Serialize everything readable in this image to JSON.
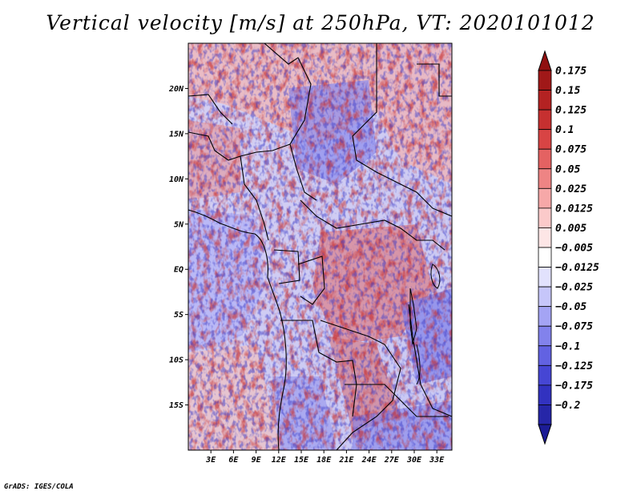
{
  "title": "Vertical velocity [m/s] at 250hPa, VT: 2020101012",
  "credit": "GrADS: IGES/COLA",
  "map": {
    "lon_range": [
      0,
      35
    ],
    "lat_range": [
      -20,
      25
    ],
    "lat_labels": [
      {
        "value": 20,
        "text": "20N"
      },
      {
        "value": 15,
        "text": "15N"
      },
      {
        "value": 10,
        "text": "10N"
      },
      {
        "value": 5,
        "text": "5N"
      },
      {
        "value": 0,
        "text": "EQ"
      },
      {
        "value": -5,
        "text": "5S"
      },
      {
        "value": -10,
        "text": "10S"
      },
      {
        "value": -15,
        "text": "15S"
      }
    ],
    "lon_labels": [
      {
        "value": 3,
        "text": "3E"
      },
      {
        "value": 6,
        "text": "6E"
      },
      {
        "value": 9,
        "text": "9E"
      },
      {
        "value": 12,
        "text": "12E"
      },
      {
        "value": 15,
        "text": "15E"
      },
      {
        "value": 18,
        "text": "18E"
      },
      {
        "value": 21,
        "text": "21E"
      },
      {
        "value": 24,
        "text": "24E"
      },
      {
        "value": 27,
        "text": "27E"
      },
      {
        "value": 30,
        "text": "30E"
      },
      {
        "value": 33,
        "text": "33E"
      }
    ]
  },
  "colorbar": {
    "levels": [
      {
        "label": "0.175",
        "color": "#a01818"
      },
      {
        "label": "0.15",
        "color": "#b42222"
      },
      {
        "label": "0.125",
        "color": "#c63030"
      },
      {
        "label": "0.1",
        "color": "#d84444"
      },
      {
        "label": "0.075",
        "color": "#e46262"
      },
      {
        "label": "0.05",
        "color": "#ee8484"
      },
      {
        "label": "0.025",
        "color": "#f6a8a8"
      },
      {
        "label": "0.0125",
        "color": "#fbcaca"
      },
      {
        "label": "0.005",
        "color": "#fde6e6"
      },
      {
        "label": "−0.005",
        "color": "#ffffff"
      },
      {
        "label": "−0.0125",
        "color": "#e2e2fd"
      },
      {
        "label": "−0.025",
        "color": "#c6c6fa"
      },
      {
        "label": "−0.05",
        "color": "#a4a4f4"
      },
      {
        "label": "−0.075",
        "color": "#8282ec"
      },
      {
        "label": "−0.1",
        "color": "#6262e2"
      },
      {
        "label": "−0.125",
        "color": "#4646d4"
      },
      {
        "label": "−0.175",
        "color": "#3232c0"
      },
      {
        "label": "−0.2",
        "color": "#2626a8"
      }
    ],
    "top_cap_color": "#901010",
    "bottom_cap_color": "#1c1c96"
  }
}
